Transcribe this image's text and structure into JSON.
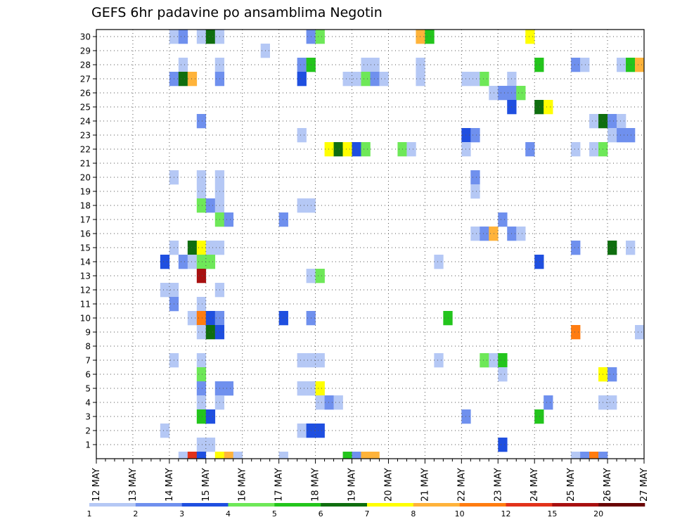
{
  "chart_data": {
    "type": "heatmap",
    "title": "GEFS 6hr padavine po ansamblima Negotin",
    "x_labels": [
      "12 MAY",
      "13 MAY",
      "14 MAY",
      "15 MAY",
      "16 MAY",
      "17 MAY",
      "18 MAY",
      "19 MAY",
      "20 MAY",
      "21 MAY",
      "22 MAY",
      "23 MAY",
      "24 MAY",
      "25 MAY",
      "26 MAY",
      "27 MAY"
    ],
    "y_labels": [
      "1",
      "2",
      "3",
      "4",
      "5",
      "6",
      "7",
      "8",
      "9",
      "10",
      "11",
      "12",
      "13",
      "14",
      "15",
      "16",
      "17",
      "18",
      "19",
      "20",
      "21",
      "22",
      "23",
      "24",
      "25",
      "26",
      "27",
      "28",
      "29",
      "30"
    ],
    "grid": true,
    "legend": {
      "placement": "bottom",
      "bounds": [
        1,
        2,
        3,
        4,
        5,
        6,
        7,
        8,
        10,
        12,
        15,
        20
      ],
      "colors": [
        "#b5c8f5",
        "#6f90ee",
        "#1f4fe0",
        "#6ee858",
        "#23c51c",
        "#0f6e0f",
        "#ffff00",
        "#ffb33a",
        "#ff7c10",
        "#e2321a",
        "#a81010",
        "#6a0505"
      ]
    },
    "members_note": "cells: [member, 6h step from 12 MAY 00Z, color index]",
    "cells": [
      [
        30,
        8,
        0
      ],
      [
        30,
        9,
        1
      ],
      [
        30,
        11,
        0
      ],
      [
        30,
        12,
        5
      ],
      [
        30,
        13,
        0
      ],
      [
        30,
        23,
        1
      ],
      [
        30,
        24,
        3
      ],
      [
        30,
        35,
        7
      ],
      [
        30,
        36,
        4
      ],
      [
        30,
        47,
        6
      ],
      [
        29,
        18,
        0
      ],
      [
        28,
        9,
        0
      ],
      [
        28,
        13,
        0
      ],
      [
        28,
        22,
        1
      ],
      [
        28,
        23,
        4
      ],
      [
        28,
        29,
        0
      ],
      [
        28,
        30,
        0
      ],
      [
        28,
        35,
        0
      ],
      [
        28,
        48,
        4
      ],
      [
        28,
        52,
        1
      ],
      [
        28,
        53,
        0
      ],
      [
        28,
        57,
        0
      ],
      [
        28,
        58,
        4
      ],
      [
        28,
        59,
        7
      ],
      [
        27,
        8,
        1
      ],
      [
        27,
        9,
        5
      ],
      [
        27,
        10,
        7
      ],
      [
        27,
        13,
        1
      ],
      [
        27,
        22,
        2
      ],
      [
        27,
        27,
        0
      ],
      [
        27,
        28,
        0
      ],
      [
        27,
        29,
        3
      ],
      [
        27,
        30,
        1
      ],
      [
        27,
        31,
        0
      ],
      [
        27,
        35,
        0
      ],
      [
        27,
        40,
        0
      ],
      [
        27,
        41,
        0
      ],
      [
        27,
        42,
        3
      ],
      [
        27,
        45,
        0
      ],
      [
        26,
        43,
        0
      ],
      [
        26,
        44,
        1
      ],
      [
        26,
        45,
        1
      ],
      [
        26,
        46,
        3
      ],
      [
        25,
        45,
        2
      ],
      [
        25,
        48,
        5
      ],
      [
        25,
        49,
        6
      ],
      [
        24,
        11,
        1
      ],
      [
        24,
        54,
        0
      ],
      [
        24,
        55,
        5
      ],
      [
        24,
        56,
        1
      ],
      [
        24,
        57,
        0
      ],
      [
        23,
        22,
        0
      ],
      [
        23,
        40,
        2
      ],
      [
        23,
        41,
        1
      ],
      [
        23,
        56,
        0
      ],
      [
        23,
        57,
        1
      ],
      [
        23,
        58,
        1
      ],
      [
        22,
        25,
        6
      ],
      [
        22,
        26,
        5
      ],
      [
        22,
        27,
        6
      ],
      [
        22,
        28,
        2
      ],
      [
        22,
        29,
        3
      ],
      [
        22,
        33,
        3
      ],
      [
        22,
        34,
        0
      ],
      [
        22,
        40,
        0
      ],
      [
        22,
        47,
        1
      ],
      [
        22,
        52,
        0
      ],
      [
        22,
        54,
        0
      ],
      [
        22,
        55,
        3
      ],
      [
        20,
        8,
        0
      ],
      [
        20,
        11,
        0
      ],
      [
        20,
        13,
        0
      ],
      [
        20,
        41,
        1
      ],
      [
        19,
        11,
        0
      ],
      [
        19,
        13,
        0
      ],
      [
        19,
        41,
        0
      ],
      [
        18,
        11,
        3
      ],
      [
        18,
        12,
        1
      ],
      [
        18,
        13,
        0
      ],
      [
        18,
        22,
        0
      ],
      [
        18,
        23,
        0
      ],
      [
        17,
        13,
        3
      ],
      [
        17,
        14,
        1
      ],
      [
        17,
        20,
        1
      ],
      [
        17,
        44,
        1
      ],
      [
        16,
        41,
        0
      ],
      [
        16,
        42,
        1
      ],
      [
        16,
        43,
        7
      ],
      [
        16,
        45,
        1
      ],
      [
        16,
        46,
        0
      ],
      [
        15,
        8,
        0
      ],
      [
        15,
        10,
        5
      ],
      [
        15,
        11,
        6
      ],
      [
        15,
        12,
        0
      ],
      [
        15,
        13,
        0
      ],
      [
        15,
        52,
        1
      ],
      [
        15,
        56,
        5
      ],
      [
        15,
        58,
        0
      ],
      [
        14,
        7,
        2
      ],
      [
        14,
        9,
        1
      ],
      [
        14,
        10,
        0
      ],
      [
        14,
        11,
        3
      ],
      [
        14,
        12,
        3
      ],
      [
        14,
        37,
        0
      ],
      [
        14,
        48,
        2
      ],
      [
        13,
        11,
        10
      ],
      [
        13,
        23,
        0
      ],
      [
        13,
        24,
        3
      ],
      [
        12,
        7,
        0
      ],
      [
        12,
        8,
        0
      ],
      [
        12,
        13,
        0
      ],
      [
        11,
        8,
        1
      ],
      [
        11,
        11,
        0
      ],
      [
        10,
        10,
        0
      ],
      [
        10,
        11,
        8
      ],
      [
        10,
        12,
        2
      ],
      [
        10,
        13,
        1
      ],
      [
        10,
        20,
        2
      ],
      [
        10,
        23,
        1
      ],
      [
        10,
        38,
        4
      ],
      [
        9,
        11,
        0
      ],
      [
        9,
        12,
        5
      ],
      [
        9,
        13,
        2
      ],
      [
        9,
        52,
        8
      ],
      [
        9,
        59,
        0
      ],
      [
        7,
        8,
        0
      ],
      [
        7,
        11,
        0
      ],
      [
        7,
        22,
        0
      ],
      [
        7,
        23,
        0
      ],
      [
        7,
        24,
        0
      ],
      [
        7,
        37,
        0
      ],
      [
        7,
        42,
        3
      ],
      [
        7,
        43,
        0
      ],
      [
        7,
        44,
        4
      ],
      [
        6,
        11,
        3
      ],
      [
        6,
        44,
        0
      ],
      [
        6,
        55,
        6
      ],
      [
        6,
        56,
        1
      ],
      [
        5,
        11,
        1
      ],
      [
        5,
        13,
        1
      ],
      [
        5,
        14,
        1
      ],
      [
        5,
        22,
        0
      ],
      [
        5,
        23,
        0
      ],
      [
        5,
        24,
        6
      ],
      [
        4,
        11,
        0
      ],
      [
        4,
        13,
        0
      ],
      [
        4,
        24,
        0
      ],
      [
        4,
        25,
        1
      ],
      [
        4,
        26,
        0
      ],
      [
        4,
        49,
        1
      ],
      [
        4,
        55,
        0
      ],
      [
        4,
        56,
        0
      ],
      [
        3,
        11,
        4
      ],
      [
        3,
        12,
        2
      ],
      [
        3,
        40,
        1
      ],
      [
        3,
        48,
        4
      ],
      [
        2,
        7,
        0
      ],
      [
        2,
        22,
        0
      ],
      [
        2,
        23,
        2
      ],
      [
        2,
        24,
        2
      ],
      [
        1,
        11,
        0
      ],
      [
        1,
        12,
        0
      ],
      [
        1,
        44,
        2
      ],
      [
        0,
        9,
        0
      ],
      [
        0,
        10,
        9
      ],
      [
        0,
        11,
        2
      ],
      [
        0,
        13,
        6
      ],
      [
        0,
        14,
        7
      ],
      [
        0,
        15,
        0
      ],
      [
        0,
        20,
        0
      ],
      [
        0,
        27,
        4
      ],
      [
        0,
        28,
        1
      ],
      [
        0,
        29,
        7
      ],
      [
        0,
        30,
        7
      ],
      [
        0,
        52,
        0
      ],
      [
        0,
        53,
        1
      ],
      [
        0,
        54,
        8
      ],
      [
        0,
        55,
        1
      ]
    ]
  }
}
